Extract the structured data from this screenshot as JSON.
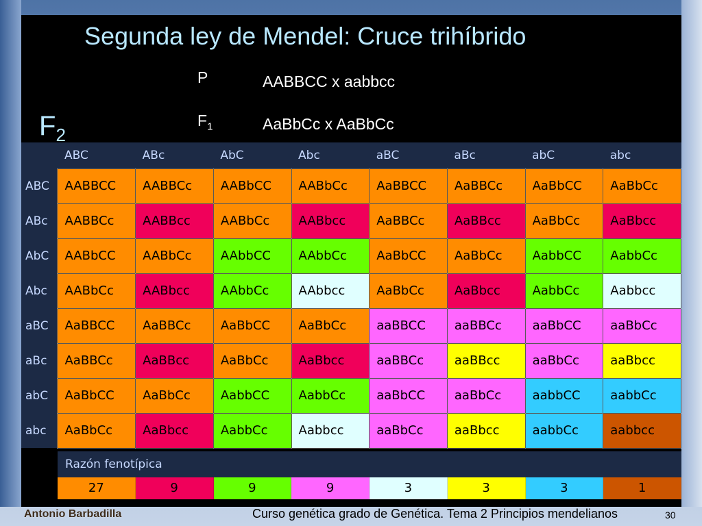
{
  "title": "Segunda ley de Mendel: Cruce trihíbrido",
  "f2": {
    "letter": "F",
    "sub": "2"
  },
  "cross": {
    "p_label": "P",
    "p_value": "AABBCC x aabbcc",
    "f1_letter": "F",
    "f1_sub": "1",
    "f1_value": "AaBbCc x AaBbCc"
  },
  "colors": {
    "orange": "#ff8c00",
    "red": "#f0005a",
    "green": "#66ff00",
    "white": "#e0ffff",
    "pink": "#ff66ff",
    "yellow": "#ffff00",
    "blue": "#33ccff",
    "brown": "#cc5500",
    "header": "#1c2a45",
    "title": "#b9e8ff"
  },
  "gametes": [
    "ABC",
    "ABc",
    "AbC",
    "Abc",
    "aBC",
    "aBc",
    "abC",
    "abc"
  ],
  "grid": {
    "rows": [
      {
        "gamete": "ABC",
        "cells": [
          {
            "g": "AABBCC",
            "c": "orange"
          },
          {
            "g": "AABBCc",
            "c": "orange"
          },
          {
            "g": "AABbCC",
            "c": "orange"
          },
          {
            "g": "AABbCc",
            "c": "orange"
          },
          {
            "g": "AaBBCC",
            "c": "orange"
          },
          {
            "g": "AaBBCc",
            "c": "orange"
          },
          {
            "g": "AaBbCC",
            "c": "orange"
          },
          {
            "g": "AaBbCc",
            "c": "orange"
          }
        ]
      },
      {
        "gamete": "ABc",
        "cells": [
          {
            "g": "AABBCc",
            "c": "orange"
          },
          {
            "g": "AABBcc",
            "c": "red"
          },
          {
            "g": "AABbCc",
            "c": "orange"
          },
          {
            "g": "AABbcc",
            "c": "red"
          },
          {
            "g": "AaBBCc",
            "c": "orange"
          },
          {
            "g": "AaBBcc",
            "c": "red"
          },
          {
            "g": "AaBbCc",
            "c": "orange"
          },
          {
            "g": "AaBbcc",
            "c": "red"
          }
        ]
      },
      {
        "gamete": "AbC",
        "cells": [
          {
            "g": "AABbCC",
            "c": "orange"
          },
          {
            "g": "AABbCc",
            "c": "orange"
          },
          {
            "g": "AAbbCC",
            "c": "green"
          },
          {
            "g": "AAbbCc",
            "c": "green"
          },
          {
            "g": "AaBbCC",
            "c": "orange"
          },
          {
            "g": "AaBbCc",
            "c": "orange"
          },
          {
            "g": "AabbCC",
            "c": "green"
          },
          {
            "g": "AabbCc",
            "c": "green"
          }
        ]
      },
      {
        "gamete": "Abc",
        "cells": [
          {
            "g": "AABbCc",
            "c": "orange"
          },
          {
            "g": "AABbcc",
            "c": "red"
          },
          {
            "g": "AAbbCc",
            "c": "green"
          },
          {
            "g": "AAbbcc",
            "c": "white"
          },
          {
            "g": "AaBbCc",
            "c": "orange"
          },
          {
            "g": "AaBbcc",
            "c": "red"
          },
          {
            "g": "AabbCc",
            "c": "green"
          },
          {
            "g": "Aabbcc",
            "c": "white"
          }
        ]
      },
      {
        "gamete": "aBC",
        "cells": [
          {
            "g": "AaBBCC",
            "c": "orange"
          },
          {
            "g": "AaBBCc",
            "c": "orange"
          },
          {
            "g": "AaBbCC",
            "c": "orange"
          },
          {
            "g": "AaBbCc",
            "c": "orange"
          },
          {
            "g": "aaBBCC",
            "c": "pink"
          },
          {
            "g": "aaBBCc",
            "c": "pink"
          },
          {
            "g": "aaBbCC",
            "c": "pink"
          },
          {
            "g": "aaBbCc",
            "c": "pink"
          }
        ]
      },
      {
        "gamete": "aBc",
        "cells": [
          {
            "g": "AaBBCc",
            "c": "orange"
          },
          {
            "g": "AaBBcc",
            "c": "red"
          },
          {
            "g": "AaBbCc",
            "c": "orange"
          },
          {
            "g": "AaBbcc",
            "c": "red"
          },
          {
            "g": "aaBBCc",
            "c": "pink"
          },
          {
            "g": "aaBBcc",
            "c": "yellow"
          },
          {
            "g": "aaBbCc",
            "c": "pink"
          },
          {
            "g": "aaBbcc",
            "c": "yellow"
          }
        ]
      },
      {
        "gamete": "abC",
        "cells": [
          {
            "g": "AaBbCC",
            "c": "orange"
          },
          {
            "g": "AaBbCc",
            "c": "orange"
          },
          {
            "g": "AabbCC",
            "c": "green"
          },
          {
            "g": "AabbCc",
            "c": "green"
          },
          {
            "g": "aaBbCC",
            "c": "pink"
          },
          {
            "g": "aaBbCc",
            "c": "pink"
          },
          {
            "g": "aabbCC",
            "c": "blue"
          },
          {
            "g": "aabbCc",
            "c": "blue"
          }
        ]
      },
      {
        "gamete": "abc",
        "cells": [
          {
            "g": "AaBbCc",
            "c": "orange"
          },
          {
            "g": "AaBbcc",
            "c": "red"
          },
          {
            "g": "AabbCc",
            "c": "green"
          },
          {
            "g": "Aabbcc",
            "c": "white"
          },
          {
            "g": "aaBbCc",
            "c": "pink"
          },
          {
            "g": "aaBbcc",
            "c": "yellow"
          },
          {
            "g": "aabbCc",
            "c": "blue"
          },
          {
            "g": "aabbcc",
            "c": "brown"
          }
        ]
      }
    ]
  },
  "ratio": {
    "label": "Razón fenotípica",
    "values": [
      {
        "v": "27",
        "c": "orange"
      },
      {
        "v": "9",
        "c": "red"
      },
      {
        "v": "9",
        "c": "green"
      },
      {
        "v": "9",
        "c": "pink"
      },
      {
        "v": "3",
        "c": "white"
      },
      {
        "v": "3",
        "c": "yellow"
      },
      {
        "v": "3",
        "c": "blue"
      },
      {
        "v": "1",
        "c": "brown"
      }
    ]
  },
  "footer": {
    "author": "Antonio Barbadilla",
    "course": "Curso genética grado de Genética. Tema 2 Principios mendelianos",
    "page": "30"
  }
}
